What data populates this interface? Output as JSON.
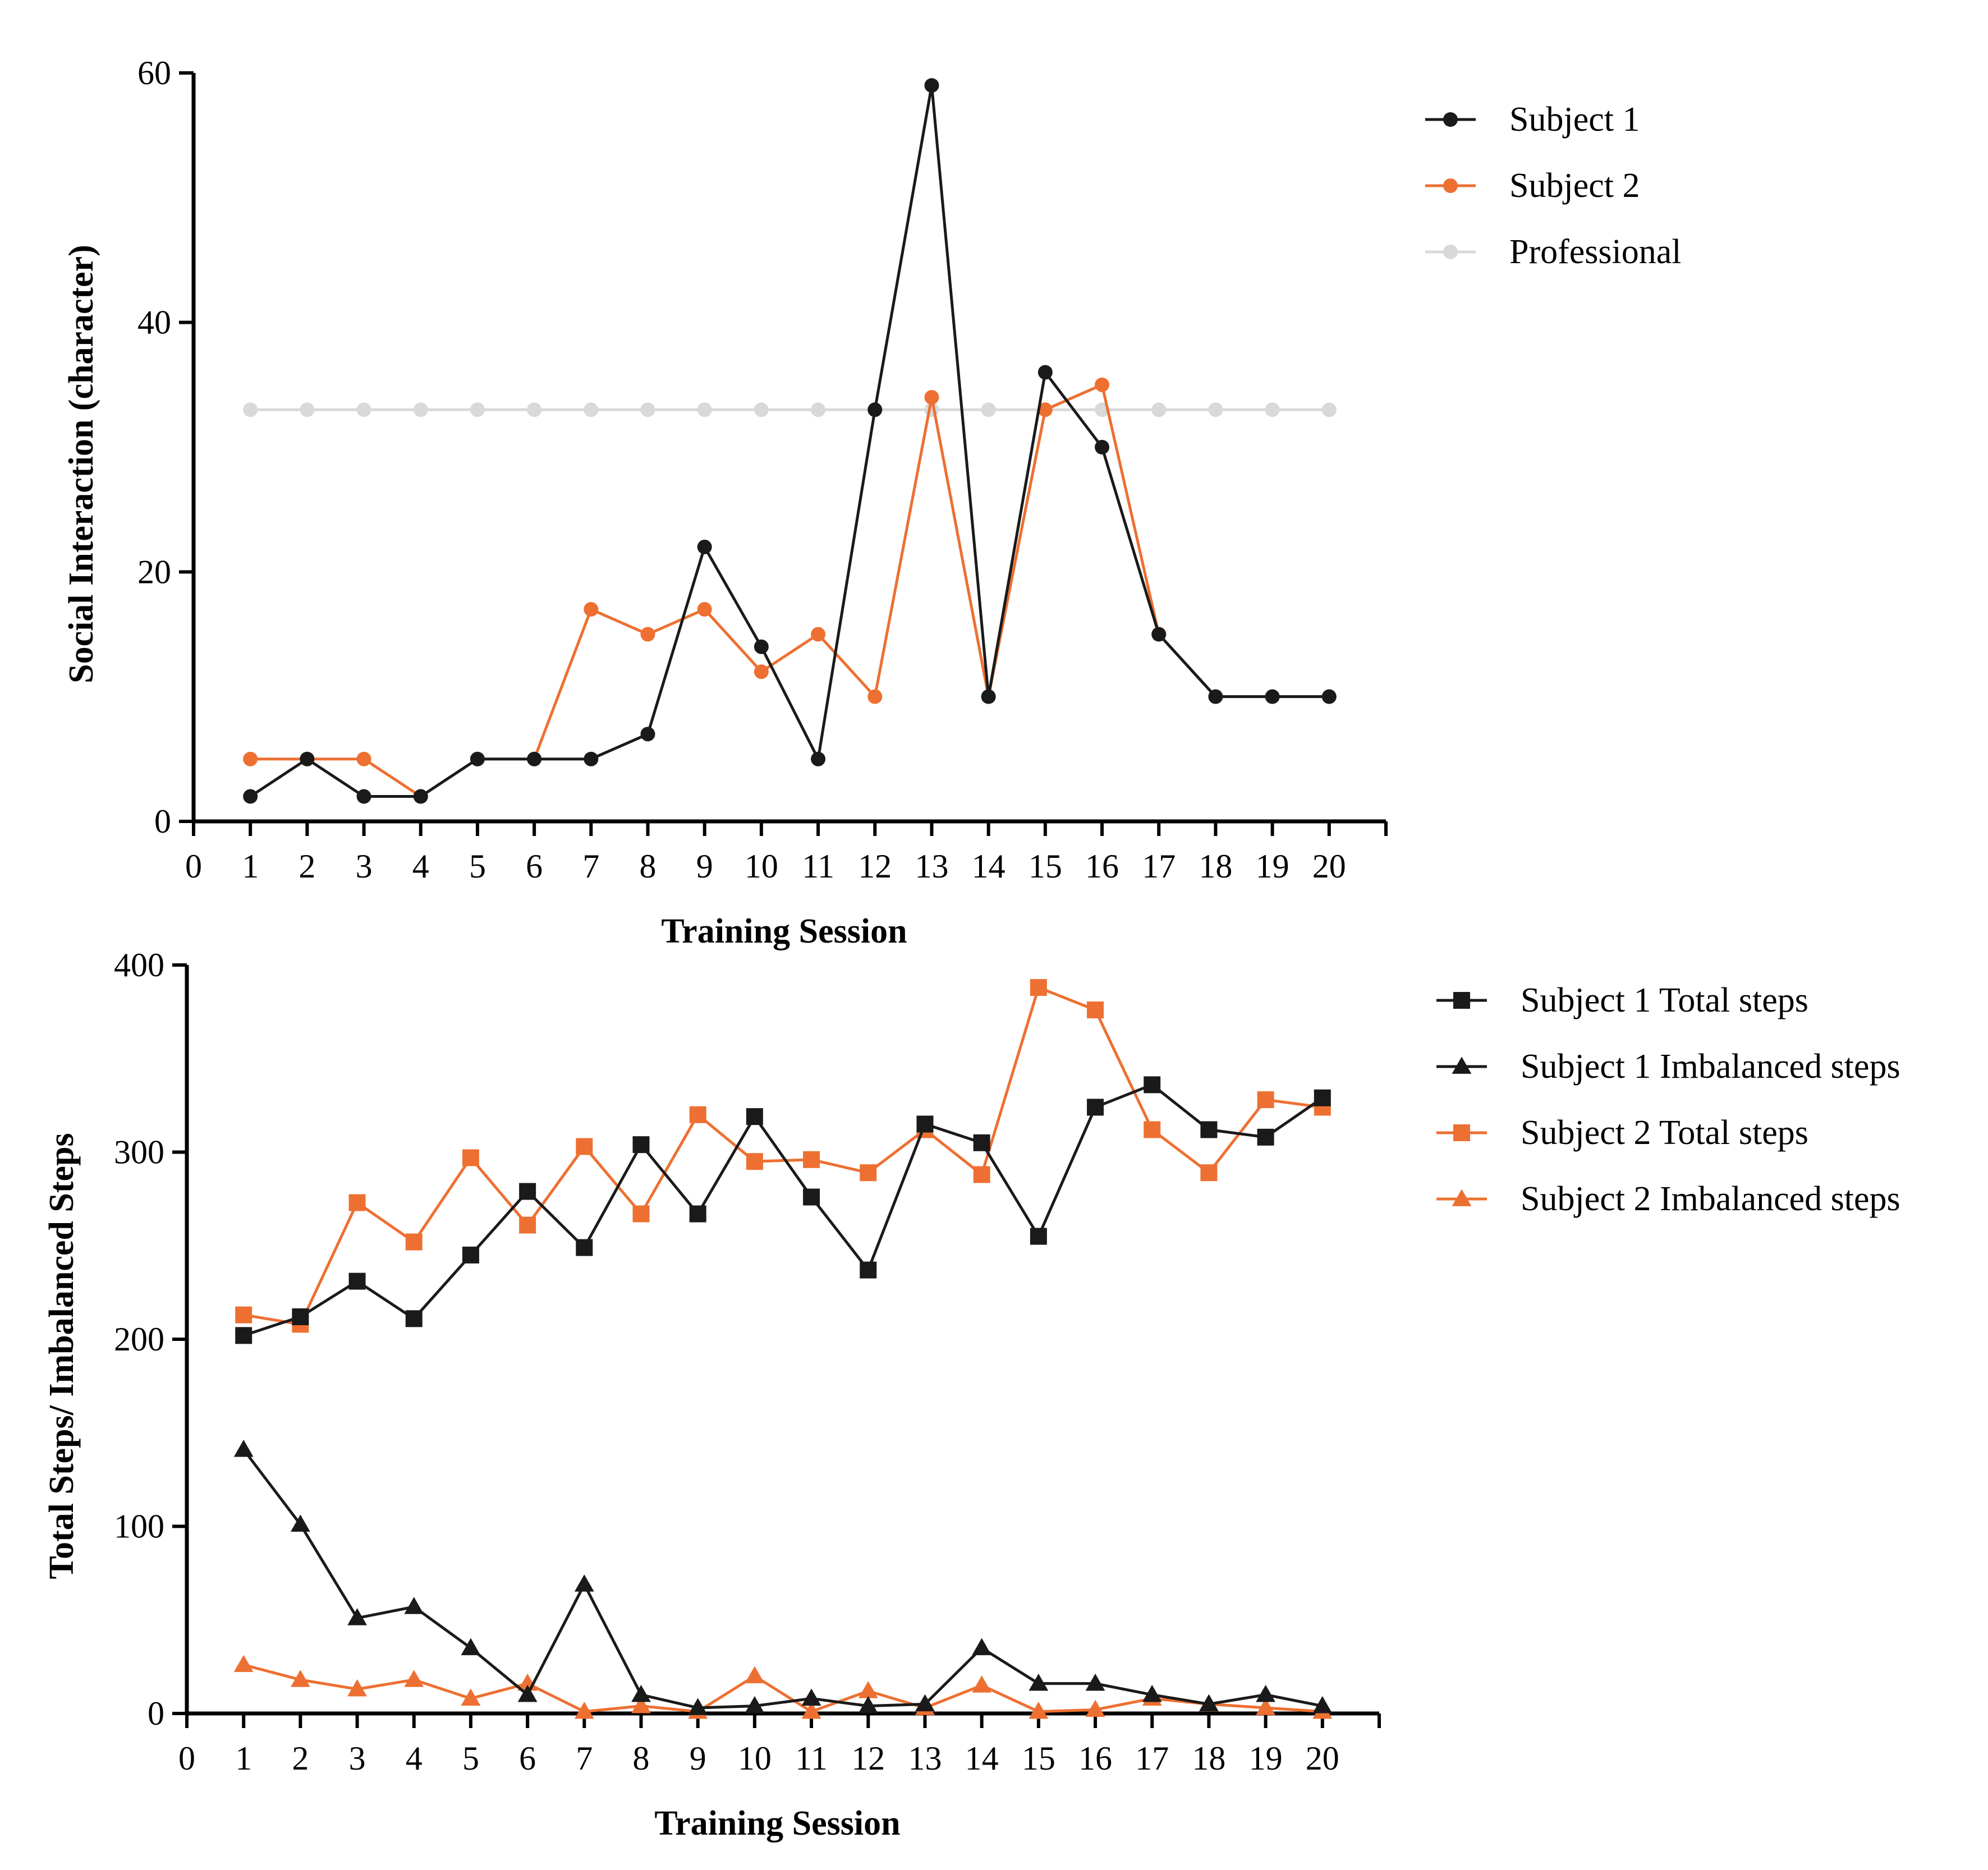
{
  "chart_data": [
    {
      "type": "line",
      "xlabel": "Training Session",
      "ylabel": "Social Interaction (character)",
      "xlim": [
        0,
        21
      ],
      "ylim": [
        0,
        60
      ],
      "xticks": [
        "0",
        "1",
        "2",
        "3",
        "4",
        "5",
        "6",
        "7",
        "8",
        "9",
        "10",
        "11",
        "12",
        "13",
        "14",
        "15",
        "16",
        "17",
        "18",
        "19",
        "20"
      ],
      "yticks": [
        "0",
        "20",
        "40",
        "60"
      ],
      "categories": [
        1,
        2,
        3,
        4,
        5,
        6,
        7,
        8,
        9,
        10,
        11,
        12,
        13,
        14,
        15,
        16,
        17,
        18,
        19,
        20
      ],
      "series": [
        {
          "name": "Professional",
          "color": "#d9d9d9",
          "marker": "circle",
          "values": [
            33,
            33,
            33,
            33,
            33,
            33,
            33,
            33,
            33,
            33,
            33,
            33,
            33,
            33,
            33,
            33,
            33,
            33,
            33,
            33
          ]
        },
        {
          "name": "Subject 2",
          "color": "#ed7032",
          "marker": "circle",
          "values": [
            5,
            5,
            5,
            2,
            5,
            5,
            17,
            15,
            17,
            12,
            15,
            10,
            34,
            10,
            33,
            35,
            15,
            10,
            10,
            10
          ]
        },
        {
          "name": "Subject 1",
          "color": "#1a1a1a",
          "marker": "circle",
          "values": [
            2,
            5,
            2,
            2,
            5,
            5,
            5,
            7,
            22,
            14,
            5,
            33,
            59,
            10,
            36,
            30,
            15,
            10,
            10,
            10
          ]
        }
      ],
      "legend": [
        "Subject 1",
        "Subject 2",
        "Professional"
      ]
    },
    {
      "type": "line",
      "xlabel": "Training Session",
      "ylabel": "Total Steps/ Imbalanced Steps",
      "xlim": [
        0,
        21
      ],
      "ylim": [
        0,
        400
      ],
      "xticks": [
        "0",
        "1",
        "2",
        "3",
        "4",
        "5",
        "6",
        "7",
        "8",
        "9",
        "10",
        "11",
        "12",
        "13",
        "14",
        "15",
        "16",
        "17",
        "18",
        "19",
        "20"
      ],
      "yticks": [
        "0",
        "100",
        "200",
        "300",
        "400"
      ],
      "categories": [
        1,
        2,
        3,
        4,
        5,
        6,
        7,
        8,
        9,
        10,
        11,
        12,
        13,
        14,
        15,
        16,
        17,
        18,
        19,
        20
      ],
      "series": [
        {
          "name": "Subject 2 Total steps",
          "color": "#ed7032",
          "marker": "square",
          "values": [
            213,
            208,
            273,
            252,
            297,
            261,
            303,
            267,
            320,
            295,
            296,
            289,
            312,
            288,
            388,
            376,
            312,
            289,
            328,
            324
          ]
        },
        {
          "name": "Subject 2 Imbalanced steps",
          "color": "#ed7032",
          "marker": "triangle",
          "values": [
            26,
            18,
            13,
            18,
            8,
            16,
            1,
            4,
            1,
            20,
            1,
            12,
            3,
            15,
            1,
            2,
            8,
            5,
            3,
            1
          ]
        },
        {
          "name": "Subject 1 Total steps",
          "color": "#1a1a1a",
          "marker": "square",
          "values": [
            202,
            212,
            231,
            211,
            245,
            279,
            249,
            304,
            267,
            319,
            276,
            237,
            315,
            305,
            255,
            324,
            336,
            312,
            308,
            329
          ]
        },
        {
          "name": "Subject 1 Imbalanced steps",
          "color": "#1a1a1a",
          "marker": "triangle",
          "values": [
            141,
            101,
            51,
            57,
            35,
            10,
            69,
            10,
            3,
            4,
            8,
            4,
            5,
            35,
            16,
            16,
            10,
            5,
            10,
            4
          ]
        }
      ],
      "legend": [
        "Subject 1 Total steps",
        "Subject 1 Imbalanced steps",
        "Subject 2 Total steps",
        "Subject 2 Imbalanced steps"
      ]
    }
  ]
}
